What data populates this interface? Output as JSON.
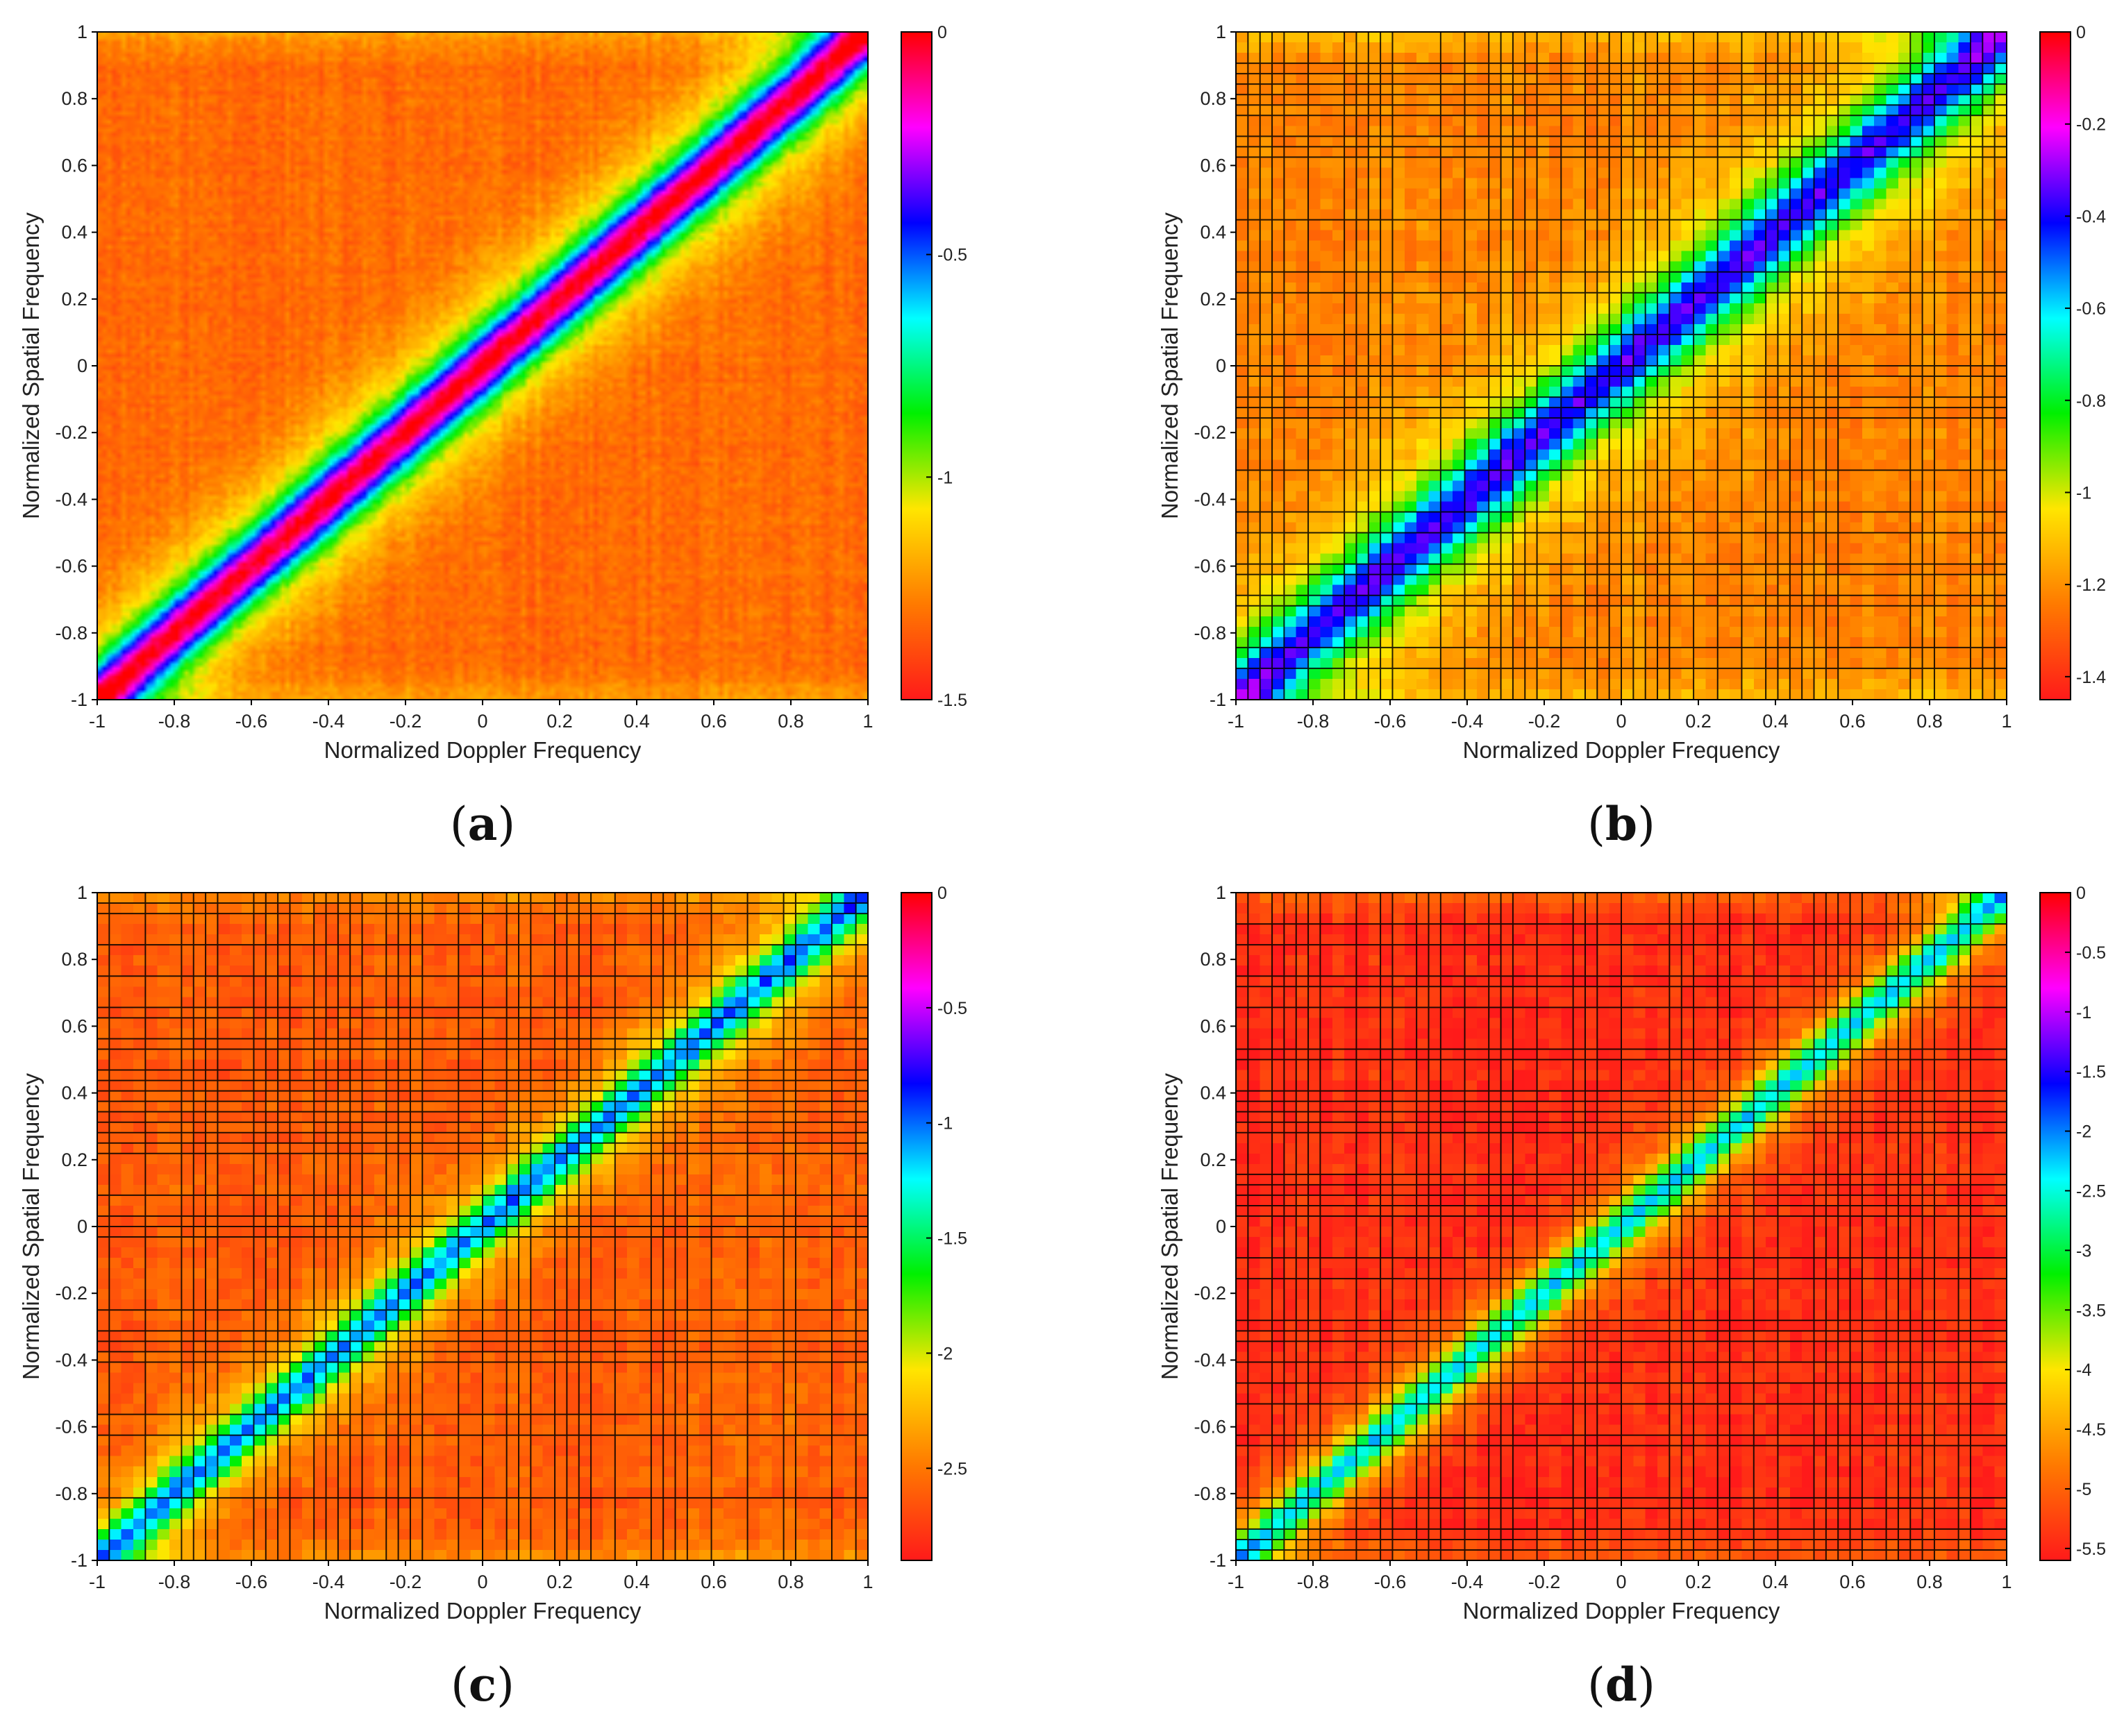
{
  "colormap": [
    "#ff1a1a",
    "#ff7a00",
    "#ffe600",
    "#00f000",
    "#00ffff",
    "#0000ff",
    "#ff00ff",
    "#ff0000"
  ],
  "grid_color": "#000000",
  "chart_data": [
    {
      "id": "a",
      "type": "heatmap",
      "caption_letter": "a",
      "caption_open": "(",
      "caption_close": ")",
      "xlabel": "Normalized Doppler Frequency",
      "ylabel": "Normalized Spatial Frequency",
      "xlim": [
        -1,
        1
      ],
      "ylim": [
        -1,
        1
      ],
      "xticks": [
        "-1",
        "-0.8",
        "-0.6",
        "-0.4",
        "-0.2",
        "0",
        "0.2",
        "0.4",
        "0.6",
        "0.8",
        "1"
      ],
      "yticks": [
        "1",
        "0.8",
        "0.6",
        "0.4",
        "0.2",
        "0",
        "-0.2",
        "-0.4",
        "-0.6",
        "-0.8",
        "-1"
      ],
      "colorbar": {
        "min": -1.5,
        "max": 0,
        "ticks": [
          [
            "0",
            0
          ],
          [
            "-0.5",
            -0.5
          ],
          [
            "-1",
            -1
          ],
          [
            "-1.5",
            -1.5
          ]
        ]
      },
      "ridge": "spatial frequency ≈ Doppler frequency (clutter ridge)",
      "ridge_peak": 0,
      "background_level": -1.32,
      "ridge_width": 0.07,
      "resolution": 160,
      "gridlines": false,
      "seed": 11
    },
    {
      "id": "b",
      "type": "heatmap",
      "caption_letter": "b",
      "caption_open": "(",
      "caption_close": ")",
      "xlabel": "Normalized Doppler Frequency",
      "ylabel": "Normalized Spatial Frequency",
      "xlim": [
        -1,
        1
      ],
      "ylim": [
        -1,
        1
      ],
      "xticks": [
        "-1",
        "-0.8",
        "-0.6",
        "-0.4",
        "-0.2",
        "0",
        "0.2",
        "0.4",
        "0.6",
        "0.8",
        "1"
      ],
      "yticks": [
        "1",
        "0.8",
        "0.6",
        "0.4",
        "0.2",
        "0",
        "-0.2",
        "-0.4",
        "-0.6",
        "-0.8",
        "-1"
      ],
      "colorbar": {
        "min": -1.45,
        "max": 0,
        "ticks": [
          [
            "0",
            0
          ],
          [
            "-0.2",
            -0.2
          ],
          [
            "-0.4",
            -0.4
          ],
          [
            "-0.6",
            -0.6
          ],
          [
            "-0.8",
            -0.8
          ],
          [
            "-1",
            -1
          ],
          [
            "-1.2",
            -1.2
          ],
          [
            "-1.4",
            -1.4
          ]
        ]
      },
      "ridge": "spatial frequency ≈ Doppler frequency (clutter ridge)",
      "ridge_peak": -0.35,
      "background_level": -1.22,
      "ridge_width": 0.09,
      "resolution": 64,
      "gridlines": true,
      "seed": 23
    },
    {
      "id": "c",
      "type": "heatmap",
      "caption_letter": "c",
      "caption_open": "(",
      "caption_close": ")",
      "xlabel": "Normalized Doppler Frequency",
      "ylabel": "Normalized Spatial Frequency",
      "xlim": [
        -1,
        1
      ],
      "ylim": [
        -1,
        1
      ],
      "xticks": [
        "-1",
        "-0.8",
        "-0.6",
        "-0.4",
        "-0.2",
        "0",
        "0.2",
        "0.4",
        "0.6",
        "0.8",
        "1"
      ],
      "yticks": [
        "1",
        "0.8",
        "0.6",
        "0.4",
        "0.2",
        "0",
        "-0.2",
        "-0.4",
        "-0.6",
        "-0.8",
        "-1"
      ],
      "colorbar": {
        "min": -2.9,
        "max": 0,
        "ticks": [
          [
            "0",
            0
          ],
          [
            "-0.5",
            -0.5
          ],
          [
            "-1",
            -1
          ],
          [
            "-1.5",
            -1.5
          ],
          [
            "-2",
            -2
          ],
          [
            "-2.5",
            -2.5
          ]
        ]
      },
      "ridge": "spatial frequency ≈ Doppler frequency (clutter ridge)",
      "ridge_peak": -1.0,
      "background_level": -2.6,
      "ridge_width": 0.055,
      "resolution": 64,
      "gridlines": true,
      "seed": 37
    },
    {
      "id": "d",
      "type": "heatmap",
      "caption_letter": "d",
      "caption_open": "(",
      "caption_close": ")",
      "xlabel": "Normalized Doppler Frequency",
      "ylabel": "Normalized Spatial Frequency",
      "xlim": [
        -1,
        1
      ],
      "ylim": [
        -1,
        1
      ],
      "xticks": [
        "-1",
        "-0.8",
        "-0.6",
        "-0.4",
        "-0.2",
        "0",
        "0.2",
        "0.4",
        "0.6",
        "0.8",
        "1"
      ],
      "yticks": [
        "1",
        "0.8",
        "0.6",
        "0.4",
        "0.2",
        "0",
        "-0.2",
        "-0.4",
        "-0.6",
        "-0.8",
        "-1"
      ],
      "colorbar": {
        "min": -5.6,
        "max": 0,
        "ticks": [
          [
            "0",
            0
          ],
          [
            "-0.5",
            -0.5
          ],
          [
            "-1",
            -1
          ],
          [
            "-1.5",
            -1.5
          ],
          [
            "-2",
            -2
          ],
          [
            "-2.5",
            -2.5
          ],
          [
            "-3",
            -3
          ],
          [
            "-3.5",
            -3.5
          ],
          [
            "-4",
            -4
          ],
          [
            "-4.5",
            -4.5
          ],
          [
            "-5",
            -5
          ],
          [
            "-5.5",
            -5.5
          ]
        ]
      },
      "ridge": "spatial frequency ≈ Doppler frequency (clutter ridge)",
      "ridge_peak": -2.3,
      "background_level": -5.4,
      "ridge_width": 0.05,
      "resolution": 64,
      "gridlines": true,
      "seed": 53
    }
  ]
}
